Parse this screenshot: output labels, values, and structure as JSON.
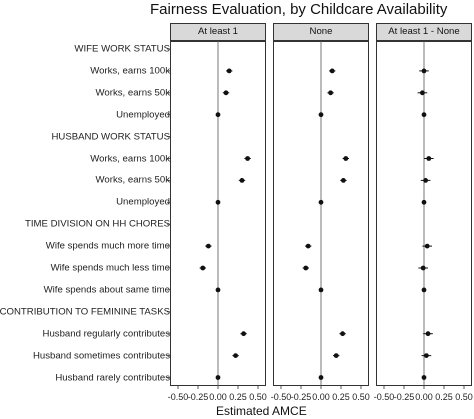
{
  "chart_data": {
    "type": "scatter",
    "title": "Fairness Evaluation, by Childcare Availability",
    "xlabel": "Estimated AMCE",
    "ylabel": "",
    "xlim": [
      -0.5,
      0.5
    ],
    "x_tick_labels": [
      "-0.50",
      "-0.25",
      "0.00",
      "0.25",
      "0.50"
    ],
    "grid": false,
    "rows": [
      {
        "label": "WIFE WORK STATUS",
        "header": true
      },
      {
        "label": "Works, earns 100k",
        "header": false
      },
      {
        "label": "Works, earns 50k",
        "header": false
      },
      {
        "label": "Unemployed",
        "header": false
      },
      {
        "label": "HUSBAND WORK STATUS",
        "header": true
      },
      {
        "label": "Works, earns 100k",
        "header": false
      },
      {
        "label": "Works, earns 50k",
        "header": false
      },
      {
        "label": "Unemployed",
        "header": false
      },
      {
        "label": "TIME DIVISION ON HH CHORES",
        "header": true
      },
      {
        "label": "Wife spends much more time",
        "header": false
      },
      {
        "label": "Wife spends much less time",
        "header": false
      },
      {
        "label": "Wife spends about same time",
        "header": false
      },
      {
        "label": "CONTRIBUTION TO FEMININE TASKS",
        "header": true
      },
      {
        "label": "Husband regularly contributes",
        "header": false
      },
      {
        "label": "Husband sometimes contributes",
        "header": false
      },
      {
        "label": "Husband rarely contributes",
        "header": false
      }
    ],
    "panels": [
      {
        "name": "At least 1",
        "estimates": [
          null,
          0.14,
          0.1,
          0.0,
          null,
          0.37,
          0.3,
          0.0,
          null,
          -0.12,
          -0.19,
          0.0,
          null,
          0.32,
          0.22,
          0.0
        ],
        "ci_low": [
          null,
          0.1,
          0.06,
          0.0,
          null,
          0.33,
          0.26,
          0.0,
          null,
          -0.16,
          -0.23,
          0.0,
          null,
          0.28,
          0.18,
          0.0
        ],
        "ci_high": [
          null,
          0.18,
          0.14,
          0.0,
          null,
          0.41,
          0.34,
          0.0,
          null,
          -0.08,
          -0.15,
          0.0,
          null,
          0.36,
          0.26,
          0.0
        ]
      },
      {
        "name": "None",
        "estimates": [
          null,
          0.14,
          0.12,
          0.0,
          null,
          0.31,
          0.28,
          0.0,
          null,
          -0.16,
          -0.19,
          0.0,
          null,
          0.27,
          0.19,
          0.0
        ],
        "ci_low": [
          null,
          0.1,
          0.08,
          0.0,
          null,
          0.27,
          0.24,
          0.0,
          null,
          -0.2,
          -0.23,
          0.0,
          null,
          0.23,
          0.15,
          0.0
        ],
        "ci_high": [
          null,
          0.18,
          0.16,
          0.0,
          null,
          0.35,
          0.32,
          0.0,
          null,
          -0.12,
          -0.15,
          0.0,
          null,
          0.31,
          0.23,
          0.0
        ]
      },
      {
        "name": "At least 1 - None",
        "estimates": [
          null,
          0.0,
          -0.02,
          0.0,
          null,
          0.06,
          0.02,
          0.0,
          null,
          0.04,
          -0.01,
          0.0,
          null,
          0.05,
          0.03,
          0.0
        ],
        "ci_low": [
          null,
          -0.06,
          -0.08,
          0.0,
          null,
          0.0,
          -0.04,
          0.0,
          null,
          -0.02,
          -0.07,
          0.0,
          null,
          -0.01,
          -0.03,
          0.0
        ],
        "ci_high": [
          null,
          0.06,
          0.04,
          0.0,
          null,
          0.12,
          0.08,
          0.0,
          null,
          0.1,
          0.05,
          0.0,
          null,
          0.11,
          0.09,
          0.0
        ]
      }
    ]
  }
}
